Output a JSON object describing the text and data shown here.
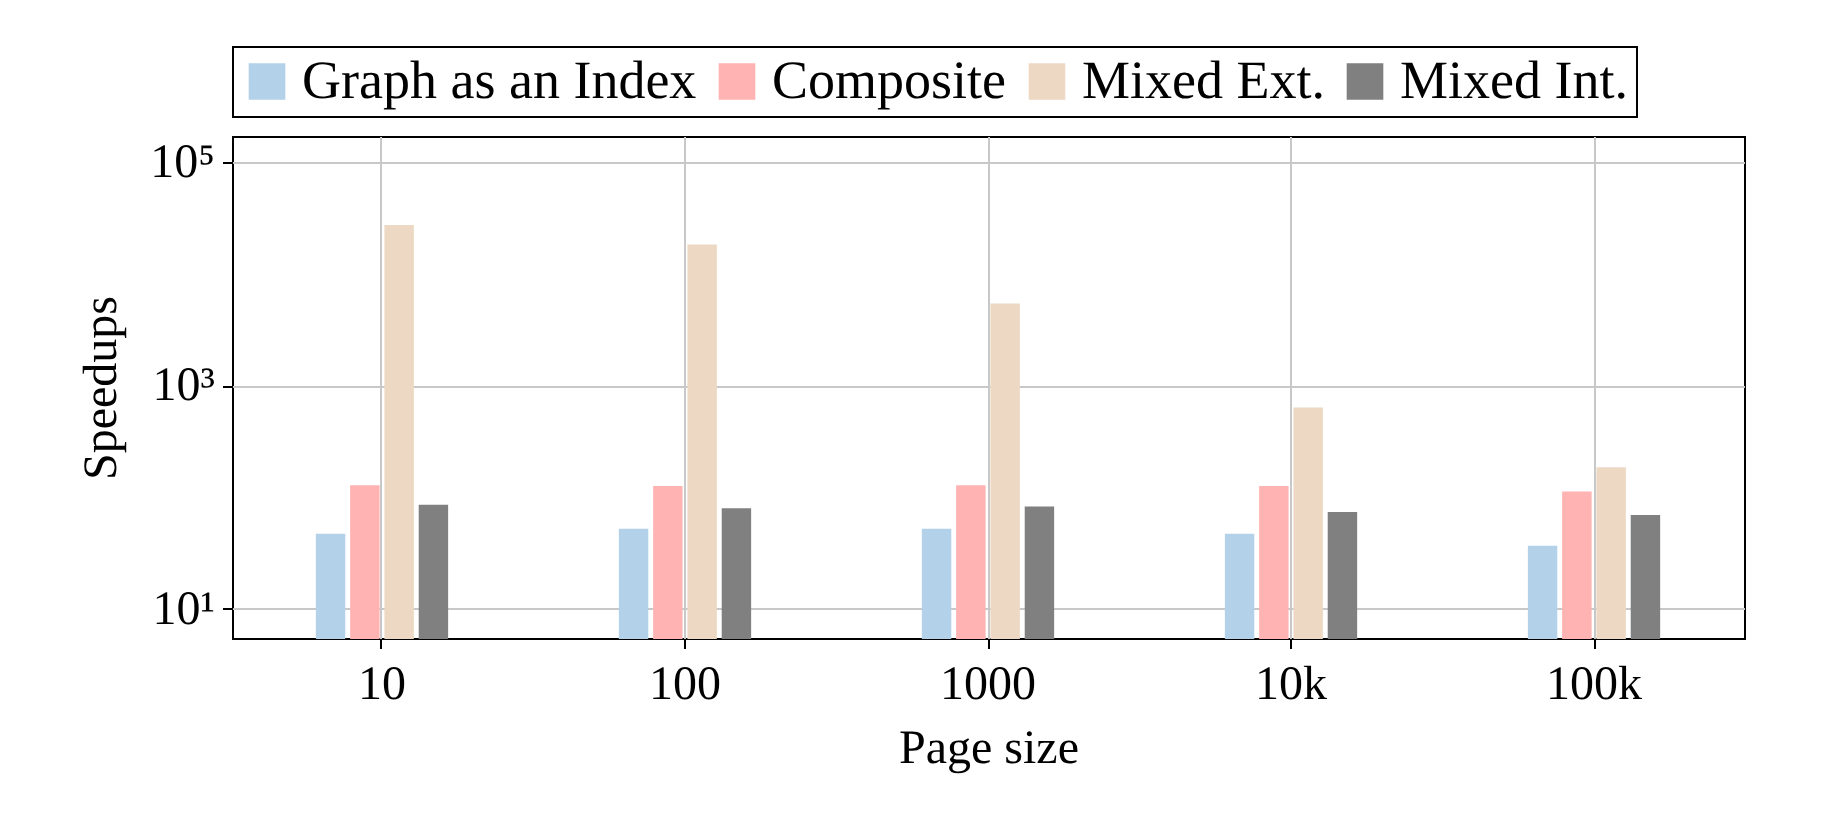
{
  "chart_data": {
    "type": "bar",
    "xlabel": "Page size",
    "ylabel": "Speedups",
    "categories": [
      "10",
      "100",
      "1000",
      "10k",
      "100k"
    ],
    "series": [
      {
        "name": "Graph as an Index",
        "color": "#b3d1e8",
        "values": [
          46,
          51,
          51,
          46,
          36
        ]
      },
      {
        "name": "Composite",
        "color": "#ffb3b3",
        "values": [
          125,
          123,
          125,
          123,
          110
        ]
      },
      {
        "name": "Mixed Ext.",
        "color": "#ecd8c3",
        "values": [
          26700,
          17800,
          5300,
          620,
          181
        ]
      },
      {
        "name": "Mixed Int.",
        "color": "#808080",
        "values": [
          84,
          78,
          81,
          72,
          68
        ]
      }
    ],
    "log": "y",
    "ylim": [
      5.5,
      170000
    ],
    "yticks": [
      {
        "value": 10,
        "label": "10¹"
      },
      {
        "value": 1000,
        "label": "10³"
      },
      {
        "value": 100000,
        "label": "10⁵"
      }
    ],
    "grid": true,
    "legend": "top"
  }
}
